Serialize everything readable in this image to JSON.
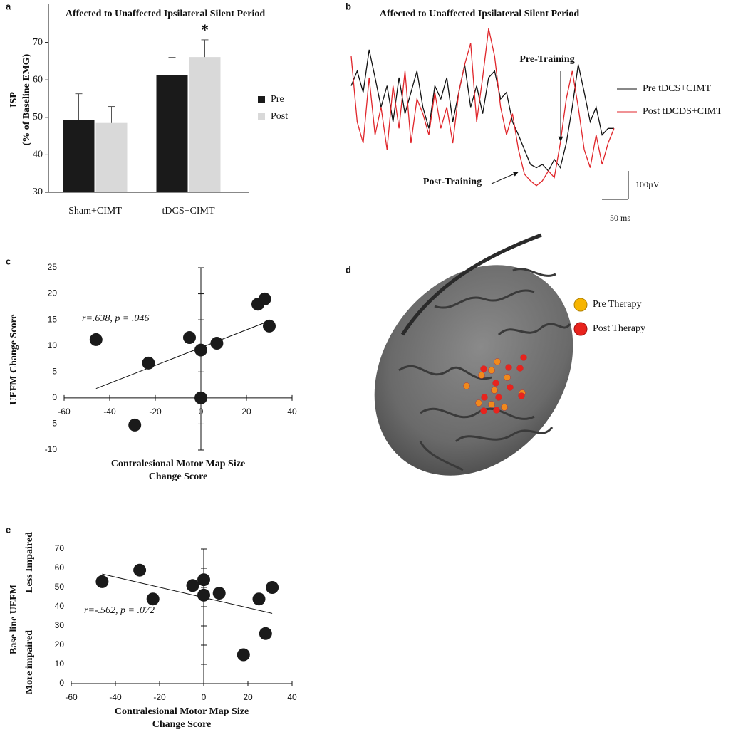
{
  "chart_data": [
    {
      "type": "bar",
      "panel": "a",
      "title": "Affected to Unaffected Ipsilateral Silent Period",
      "y_label": [
        "ISP",
        "(% of Baseline EMG)"
      ],
      "categories": [
        "Sham+CIMT",
        "tDCS+CIMT"
      ],
      "series": [
        {
          "name": "Pre",
          "color": "#1a1a1a",
          "values": [
            49.3,
            61.2
          ],
          "errors": [
            7,
            4.8
          ]
        },
        {
          "name": "Post",
          "color": "#d9d9d9",
          "values": [
            48.5,
            66.1
          ],
          "errors": [
            4.4,
            4.6
          ]
        }
      ],
      "annotations": [
        "*"
      ],
      "ylim": [
        30,
        80
      ],
      "yticks": [
        30,
        40,
        50,
        60,
        70
      ]
    },
    {
      "type": "line",
      "panel": "b",
      "title": "Affected to Unaffected Ipsilateral Silent Period",
      "x": [
        0,
        1,
        2,
        3,
        4,
        5,
        6,
        7,
        8,
        9,
        10,
        11,
        12,
        13,
        14,
        15,
        16,
        17,
        18,
        19,
        20,
        21,
        22,
        23,
        24,
        25,
        26,
        27,
        28,
        29,
        30,
        31,
        32,
        33,
        34,
        35,
        36,
        37,
        38,
        39,
        40,
        41,
        42,
        43,
        44
      ],
      "series": [
        {
          "name": "Pre tDCS+CIMT",
          "color": "#111111",
          "values": [
            65,
            74,
            61,
            87,
            70,
            52,
            65,
            43,
            70,
            48,
            61,
            74,
            52,
            39,
            65,
            57,
            70,
            43,
            61,
            78,
            52,
            65,
            48,
            70,
            74,
            57,
            61,
            43,
            35,
            26,
            17,
            15,
            17,
            13,
            20,
            15,
            30,
            52,
            78,
            61,
            43,
            52,
            35,
            39,
            39
          ]
        },
        {
          "name": "Post tDCDS+CIMT",
          "color": "#e0262b",
          "values": [
            83,
            43,
            30,
            70,
            35,
            52,
            26,
            65,
            39,
            74,
            30,
            57,
            48,
            35,
            61,
            39,
            52,
            30,
            61,
            78,
            91,
            43,
            70,
            100,
            83,
            52,
            35,
            48,
            26,
            11,
            7,
            4,
            7,
            13,
            9,
            30,
            57,
            74,
            52,
            26,
            15,
            35,
            17,
            30,
            39
          ]
        }
      ],
      "annotations": [
        "Pre-Training",
        "Post-Training"
      ],
      "scale_labels": [
        "100µV",
        "50 ms"
      ],
      "xlim": [
        0,
        44
      ],
      "ylim": [
        0,
        100
      ]
    },
    {
      "type": "scatter",
      "panel": "c",
      "y_label": "UEFM Change Score",
      "x_label": [
        "Contralesional Motor Map Size",
        "Change Score"
      ],
      "x": [
        -46,
        -29,
        -23,
        -5,
        0,
        0,
        7,
        25,
        28,
        30
      ],
      "values": [
        11.2,
        -5.2,
        6.7,
        11.6,
        9.2,
        0,
        10.5,
        18,
        19,
        13.8
      ],
      "color": "#1a1a1a",
      "fit": {
        "x": [
          -46,
          30
        ],
        "values": [
          1.8,
          14.8
        ]
      },
      "annotations": [
        "r=.638,  p = .046"
      ],
      "xlim": [
        -60,
        40
      ],
      "xticks": [
        -60,
        -40,
        -20,
        0,
        20,
        40
      ],
      "ylim": [
        -10,
        25
      ],
      "yticks": [
        -10,
        -5,
        0,
        5,
        10,
        15,
        20,
        25
      ]
    },
    {
      "type": "scatter",
      "panel": "e",
      "y_label": "Base line UEFM",
      "y_annotations": [
        "Less Impaired",
        "More impaired"
      ],
      "x_label": [
        "Contralesional Motor Map Size",
        "Change Score"
      ],
      "x": [
        -46,
        -29,
        -23,
        -5,
        0,
        0,
        7,
        18,
        25,
        28,
        31
      ],
      "values": [
        53,
        59,
        44,
        51,
        54,
        46,
        47,
        15,
        44,
        26,
        50
      ],
      "color": "#1a1a1a",
      "fit": {
        "x": [
          -46,
          31
        ],
        "values": [
          57,
          36.5
        ]
      },
      "annotations": [
        "r=-.562,  p = .072"
      ],
      "xlim": [
        -60,
        40
      ],
      "xticks": [
        -60,
        -40,
        -20,
        0,
        20,
        40
      ],
      "ylim": [
        0,
        70
      ],
      "yticks": [
        0,
        10,
        20,
        30,
        40,
        50,
        60,
        70
      ]
    }
  ],
  "brain_panel": {
    "panel": "d",
    "legend": [
      "Pre Therapy",
      "Post Therapy"
    ]
  }
}
